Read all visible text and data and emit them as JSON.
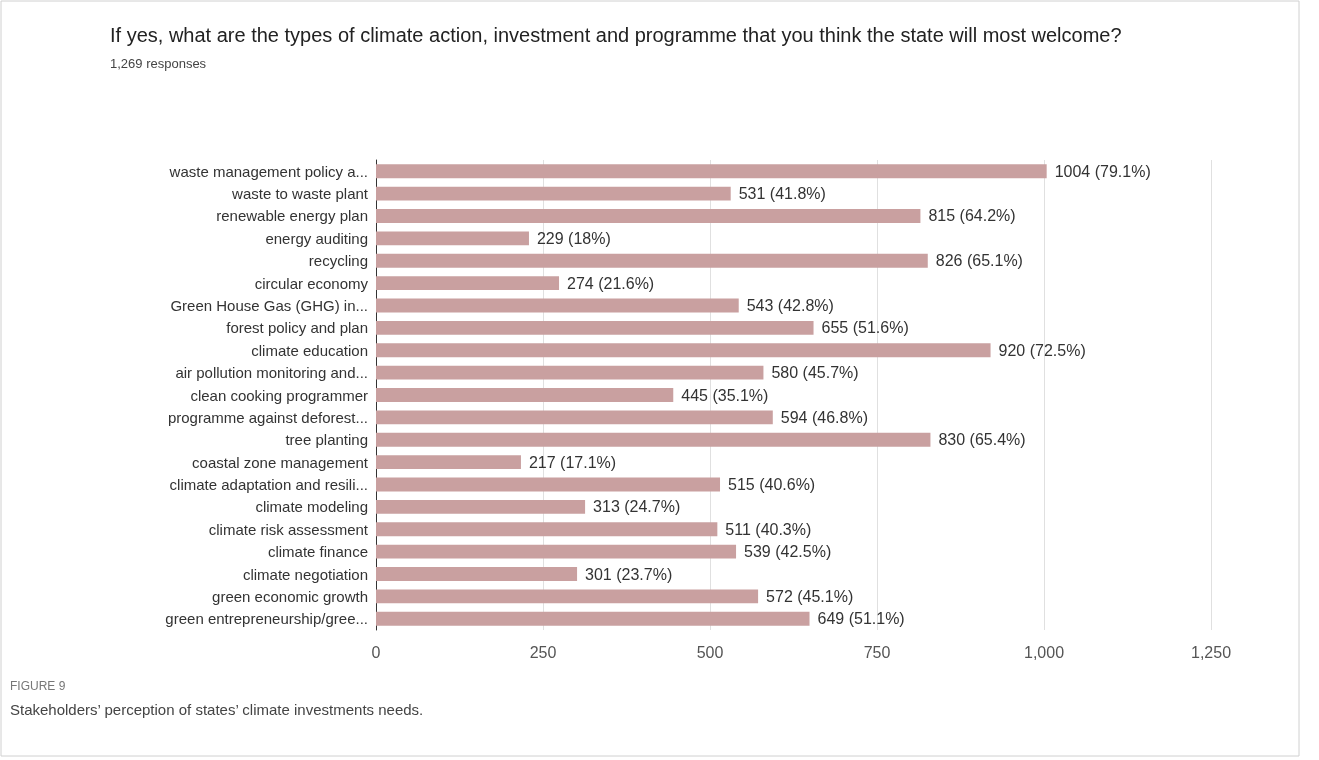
{
  "chart_data": {
    "type": "bar",
    "orientation": "horizontal",
    "title": "If yes, what are the types of climate action, investment and programme that you think the state will most welcome?",
    "subtitle": "1,269 responses",
    "categories": [
      "waste management policy a...",
      "waste to waste plant",
      "renewable energy plan",
      "energy auditing",
      "recycling",
      "circular economy",
      "Green House Gas (GHG) in...",
      "forest policy and plan",
      "climate education",
      "air pollution monitoring and...",
      "clean cooking programmer",
      "programme against deforest...",
      "tree planting",
      "coastal zone management",
      "climate adaptation and resili...",
      "climate modeling",
      "climate risk assessment",
      "climate finance",
      "climate negotiation",
      "green economic growth",
      "green entrepreneurship/gree..."
    ],
    "values": [
      1004,
      531,
      815,
      229,
      826,
      274,
      543,
      655,
      920,
      580,
      445,
      594,
      830,
      217,
      515,
      313,
      511,
      539,
      301,
      572,
      649
    ],
    "value_labels": [
      "1004 (79.1%)",
      "531 (41.8%)",
      "815 (64.2%)",
      "229 (18%)",
      "826 (65.1%)",
      "274 (21.6%)",
      "543 (42.8%)",
      "655 (51.6%)",
      "920 (72.5%)",
      "580 (45.7%)",
      "445 (35.1%)",
      "594 (46.8%)",
      "830 (65.4%)",
      "217 (17.1%)",
      "515 (40.6%)",
      "313 (24.7%)",
      "511 (40.3%)",
      "539 (42.5%)",
      "301 (23.7%)",
      "572 (45.1%)",
      "649 (51.1%)"
    ],
    "color": "#c9a0a0",
    "xlim": [
      0,
      1250
    ],
    "xticks": [
      0,
      250,
      500,
      750,
      {
        "value": 1000,
        "label": "1,000"
      },
      {
        "value": 1250,
        "label": "1,250"
      }
    ],
    "grid": "x",
    "annotations": [
      "FIGURE 9",
      "Stakeholders’ perception of states’ climate investments needs."
    ]
  }
}
